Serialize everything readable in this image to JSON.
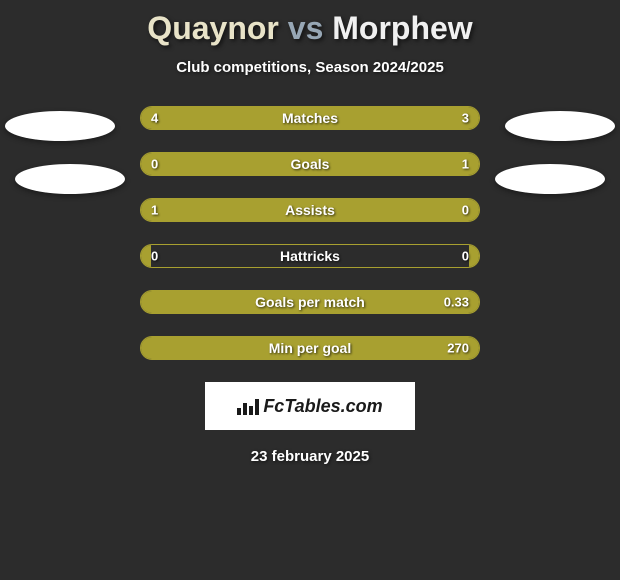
{
  "title": {
    "player1": "Quaynor",
    "vs": "vs",
    "player2": "Morphew"
  },
  "subtitle": "Club competitions, Season 2024/2025",
  "colors": {
    "bar_fill": "#a8a030",
    "bar_border": "#a8a030",
    "background": "#2c2c2c"
  },
  "stats": [
    {
      "label": "Matches",
      "left_val": "4",
      "right_val": "3",
      "left_pct": 57,
      "right_pct": 43
    },
    {
      "label": "Goals",
      "left_val": "0",
      "right_val": "1",
      "left_pct": 20,
      "right_pct": 80
    },
    {
      "label": "Assists",
      "left_val": "1",
      "right_val": "0",
      "left_pct": 80,
      "right_pct": 20
    },
    {
      "label": "Hattricks",
      "left_val": "0",
      "right_val": "0",
      "left_pct": 3,
      "right_pct": 3
    },
    {
      "label": "Goals per match",
      "left_val": "",
      "right_val": "0.33",
      "left_pct": 35,
      "right_pct": 65
    },
    {
      "label": "Min per goal",
      "left_val": "",
      "right_val": "270",
      "left_pct": 55,
      "right_pct": 45
    }
  ],
  "branding": "FcTables.com",
  "date": "23 february 2025"
}
